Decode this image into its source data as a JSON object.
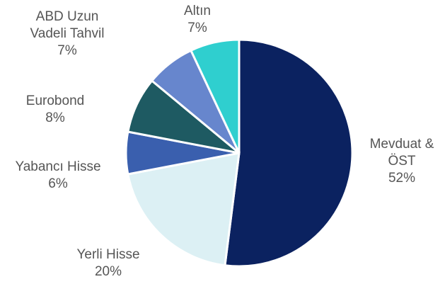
{
  "chart_data": {
    "type": "pie",
    "categories": [
      "Mevduat & ÖST",
      "Yerli Hisse",
      "Yabancı Hisse",
      "Eurobond",
      "ABD Uzun Vadeli Tahvil",
      "Altın"
    ],
    "values": [
      52,
      20,
      6,
      8,
      7,
      7
    ],
    "value_labels": [
      "52%",
      "20%",
      "6%",
      "8%",
      "7%",
      "7%"
    ],
    "colors": [
      "#0b2260",
      "#dcf0f4",
      "#3a5fae",
      "#1e5a62",
      "#6786cd",
      "#2fcfcf"
    ]
  }
}
